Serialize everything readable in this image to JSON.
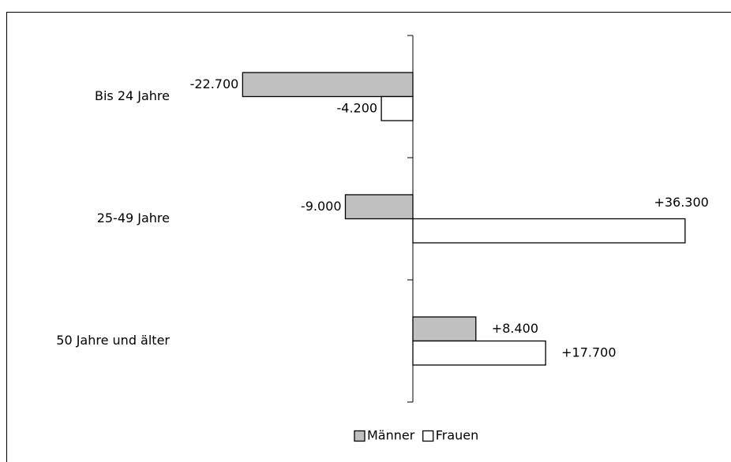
{
  "chart_data": {
    "type": "hbar",
    "categories": [
      "Bis 24 Jahre",
      "25-49 Jahre",
      "50 Jahre und älter"
    ],
    "series": [
      {
        "name": "Männer",
        "color": "#c0c0c0",
        "values": [
          -22700,
          -9000,
          8400
        ],
        "value_labels": [
          "-22.700",
          "-9.000",
          "+8.400"
        ]
      },
      {
        "name": "Frauen",
        "color": "#ffffff",
        "values": [
          -4200,
          36300,
          17700
        ],
        "value_labels": [
          "-4.200",
          "+36.300",
          "+17.700"
        ]
      }
    ],
    "xlim": [
      -40000,
      40000
    ],
    "legend": "bottom"
  }
}
